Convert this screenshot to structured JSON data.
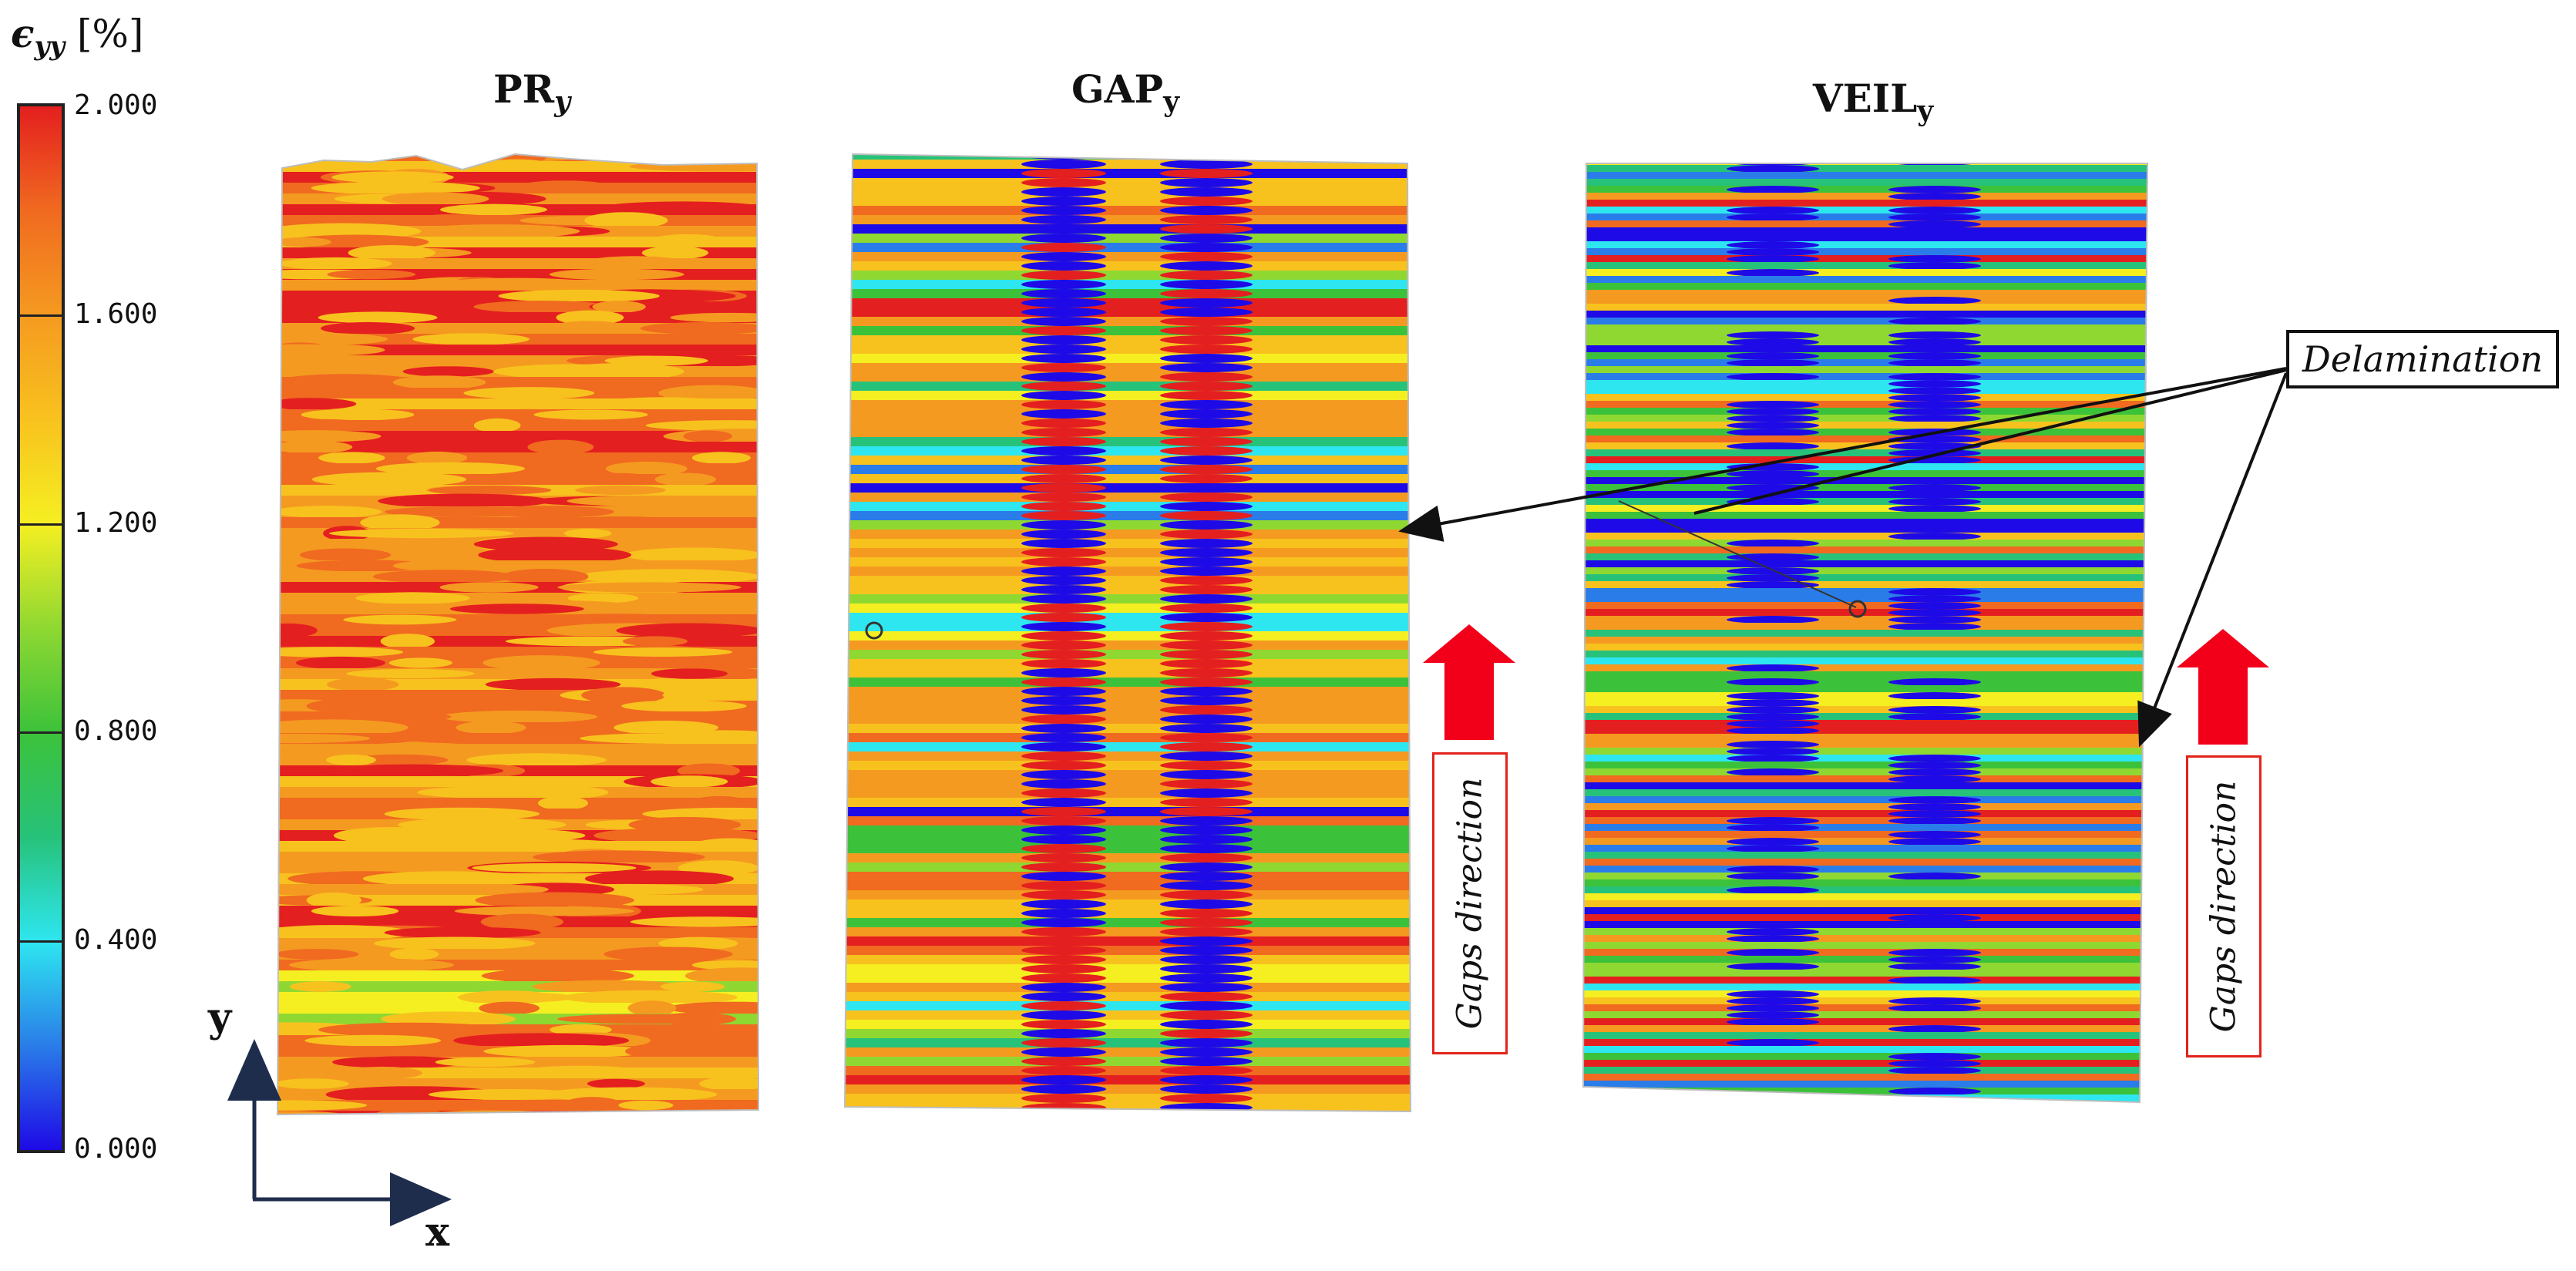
{
  "colorbar": {
    "title_symbol": "ϵ",
    "title_subscript": "yy",
    "title_unit": " [%]",
    "ticks": [
      "2.000",
      "1.600",
      "1.200",
      "0.800",
      "0.400",
      "0.000"
    ],
    "min": 0,
    "max": 2,
    "stops": [
      "#1e0ae6",
      "#2a7de8",
      "#2ee6f0",
      "#27c27a",
      "#3cc23a",
      "#8fd832",
      "#f5ef22",
      "#f8c21e",
      "#f59a20",
      "#f06a20",
      "#e41f1f"
    ]
  },
  "panels": [
    {
      "title_main": "PR",
      "title_sub": "y"
    },
    {
      "title_main": "GAP",
      "title_sub": "y"
    },
    {
      "title_main": "VEIL",
      "title_sub": "y"
    }
  ],
  "annotations": {
    "delamination": "Delamination",
    "gaps_direction": "Gaps direction",
    "axis_x": "x",
    "axis_y": "y"
  },
  "colors": {
    "arrow_red": "#f2001a",
    "axis_navy": "#1f2d4d"
  }
}
